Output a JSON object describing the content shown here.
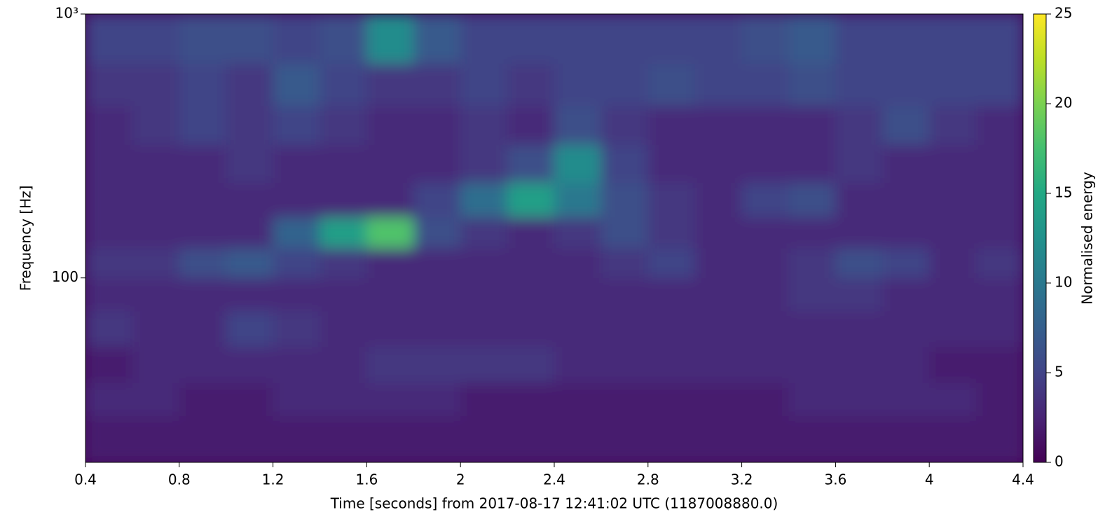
{
  "chart_data": {
    "type": "heatmap",
    "x_label": "Time [seconds] from 2017-08-17 12:41:02 UTC (1187008880.0)",
    "y_label": "Frequency [Hz]",
    "colorbar_label": "Normalised energy",
    "colormap": "viridis",
    "log_y": true,
    "xlim": [
      0.4,
      4.4
    ],
    "xticks": [
      0.4,
      0.8,
      1.2,
      1.6,
      2,
      2.4,
      2.8,
      3.2,
      3.6,
      4,
      4.4
    ],
    "ylim": [
      20,
      1000
    ],
    "yticks": [
      100,
      {
        "value": 1000,
        "label": "10³"
      }
    ],
    "clim": [
      0,
      25
    ],
    "cticks": [
      0,
      5,
      10,
      15,
      20,
      25
    ],
    "x_edges": [
      0.4,
      0.6,
      0.8,
      1.0,
      1.2,
      1.4,
      1.6,
      1.8,
      2.0,
      2.2,
      2.4,
      2.6,
      2.8,
      3.0,
      3.2,
      3.4,
      3.6,
      3.8,
      4.0,
      4.2,
      4.4
    ],
    "y_edges": [
      20,
      30,
      40,
      55,
      75,
      100,
      130,
      170,
      230,
      320,
      450,
      650,
      1000
    ],
    "z": [
      [
        2,
        2,
        2,
        2,
        2,
        2,
        2,
        2,
        2,
        2,
        2,
        2,
        2,
        2,
        2,
        2,
        2,
        2,
        2,
        2
      ],
      [
        3,
        3,
        2,
        2,
        3,
        3,
        3,
        3,
        2,
        2,
        2,
        2,
        2,
        2,
        2,
        3,
        3,
        3,
        3,
        2
      ],
      [
        2,
        3,
        3,
        3,
        3,
        3,
        4,
        4,
        4,
        4,
        3,
        3,
        3,
        3,
        3,
        3,
        3,
        3,
        2,
        2
      ],
      [
        4,
        3,
        3,
        5,
        4,
        3,
        3,
        3,
        3,
        3,
        3,
        3,
        3,
        3,
        3,
        3,
        3,
        3,
        3,
        3
      ],
      [
        3,
        3,
        3,
        3,
        3,
        3,
        3,
        3,
        3,
        3,
        3,
        3,
        3,
        3,
        3,
        4,
        4,
        3,
        3,
        3
      ],
      [
        4,
        4,
        6,
        7,
        5,
        4,
        3,
        3,
        3,
        3,
        3,
        4,
        5,
        3,
        3,
        4,
        6,
        5,
        3,
        4
      ],
      [
        3,
        3,
        3,
        3,
        8,
        14,
        18,
        6,
        4,
        3,
        4,
        6,
        4,
        3,
        3,
        3,
        3,
        3,
        3,
        3
      ],
      [
        3,
        3,
        3,
        3,
        3,
        3,
        3,
        5,
        9,
        14,
        10,
        6,
        4,
        3,
        5,
        6,
        3,
        3,
        3,
        3
      ],
      [
        3,
        3,
        3,
        4,
        3,
        3,
        3,
        3,
        4,
        6,
        12,
        5,
        3,
        3,
        3,
        3,
        4,
        3,
        3,
        3
      ],
      [
        3,
        4,
        5,
        4,
        5,
        4,
        3,
        3,
        4,
        3,
        6,
        4,
        3,
        3,
        3,
        3,
        4,
        6,
        4,
        3
      ],
      [
        4,
        4,
        5,
        4,
        7,
        5,
        4,
        4,
        5,
        4,
        5,
        5,
        6,
        5,
        5,
        6,
        5,
        5,
        5,
        5
      ],
      [
        5,
        5,
        6,
        6,
        5,
        6,
        12,
        7,
        5,
        5,
        5,
        5,
        5,
        5,
        6,
        7,
        5,
        5,
        5,
        5
      ]
    ]
  }
}
